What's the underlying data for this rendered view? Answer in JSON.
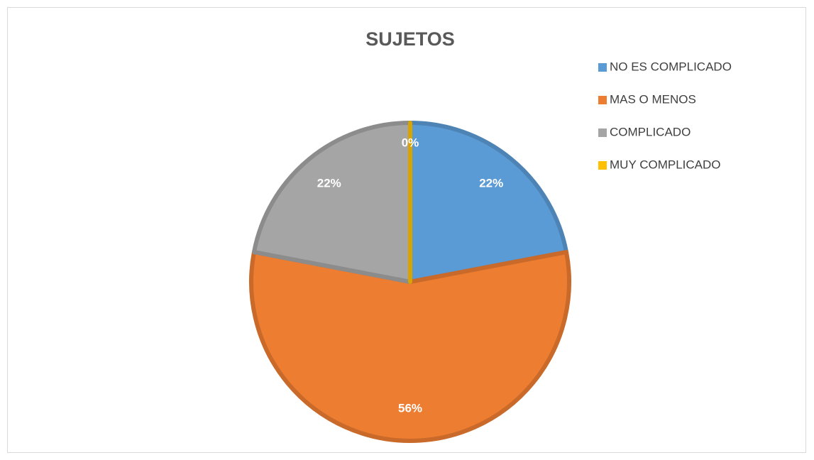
{
  "chart_data": {
    "type": "pie",
    "title": "SUJETOS",
    "categories": [
      "NO ES COMPLICADO",
      "MAS O MENOS",
      "COMPLICADO",
      "MUY COMPLICADO"
    ],
    "values": [
      22,
      56,
      22,
      0
    ],
    "value_labels": [
      "22%",
      "56%",
      "22%",
      "0%"
    ],
    "colors": [
      "#5b9bd5",
      "#ed7d31",
      "#a5a5a5",
      "#ffc000"
    ],
    "legend": "right"
  }
}
